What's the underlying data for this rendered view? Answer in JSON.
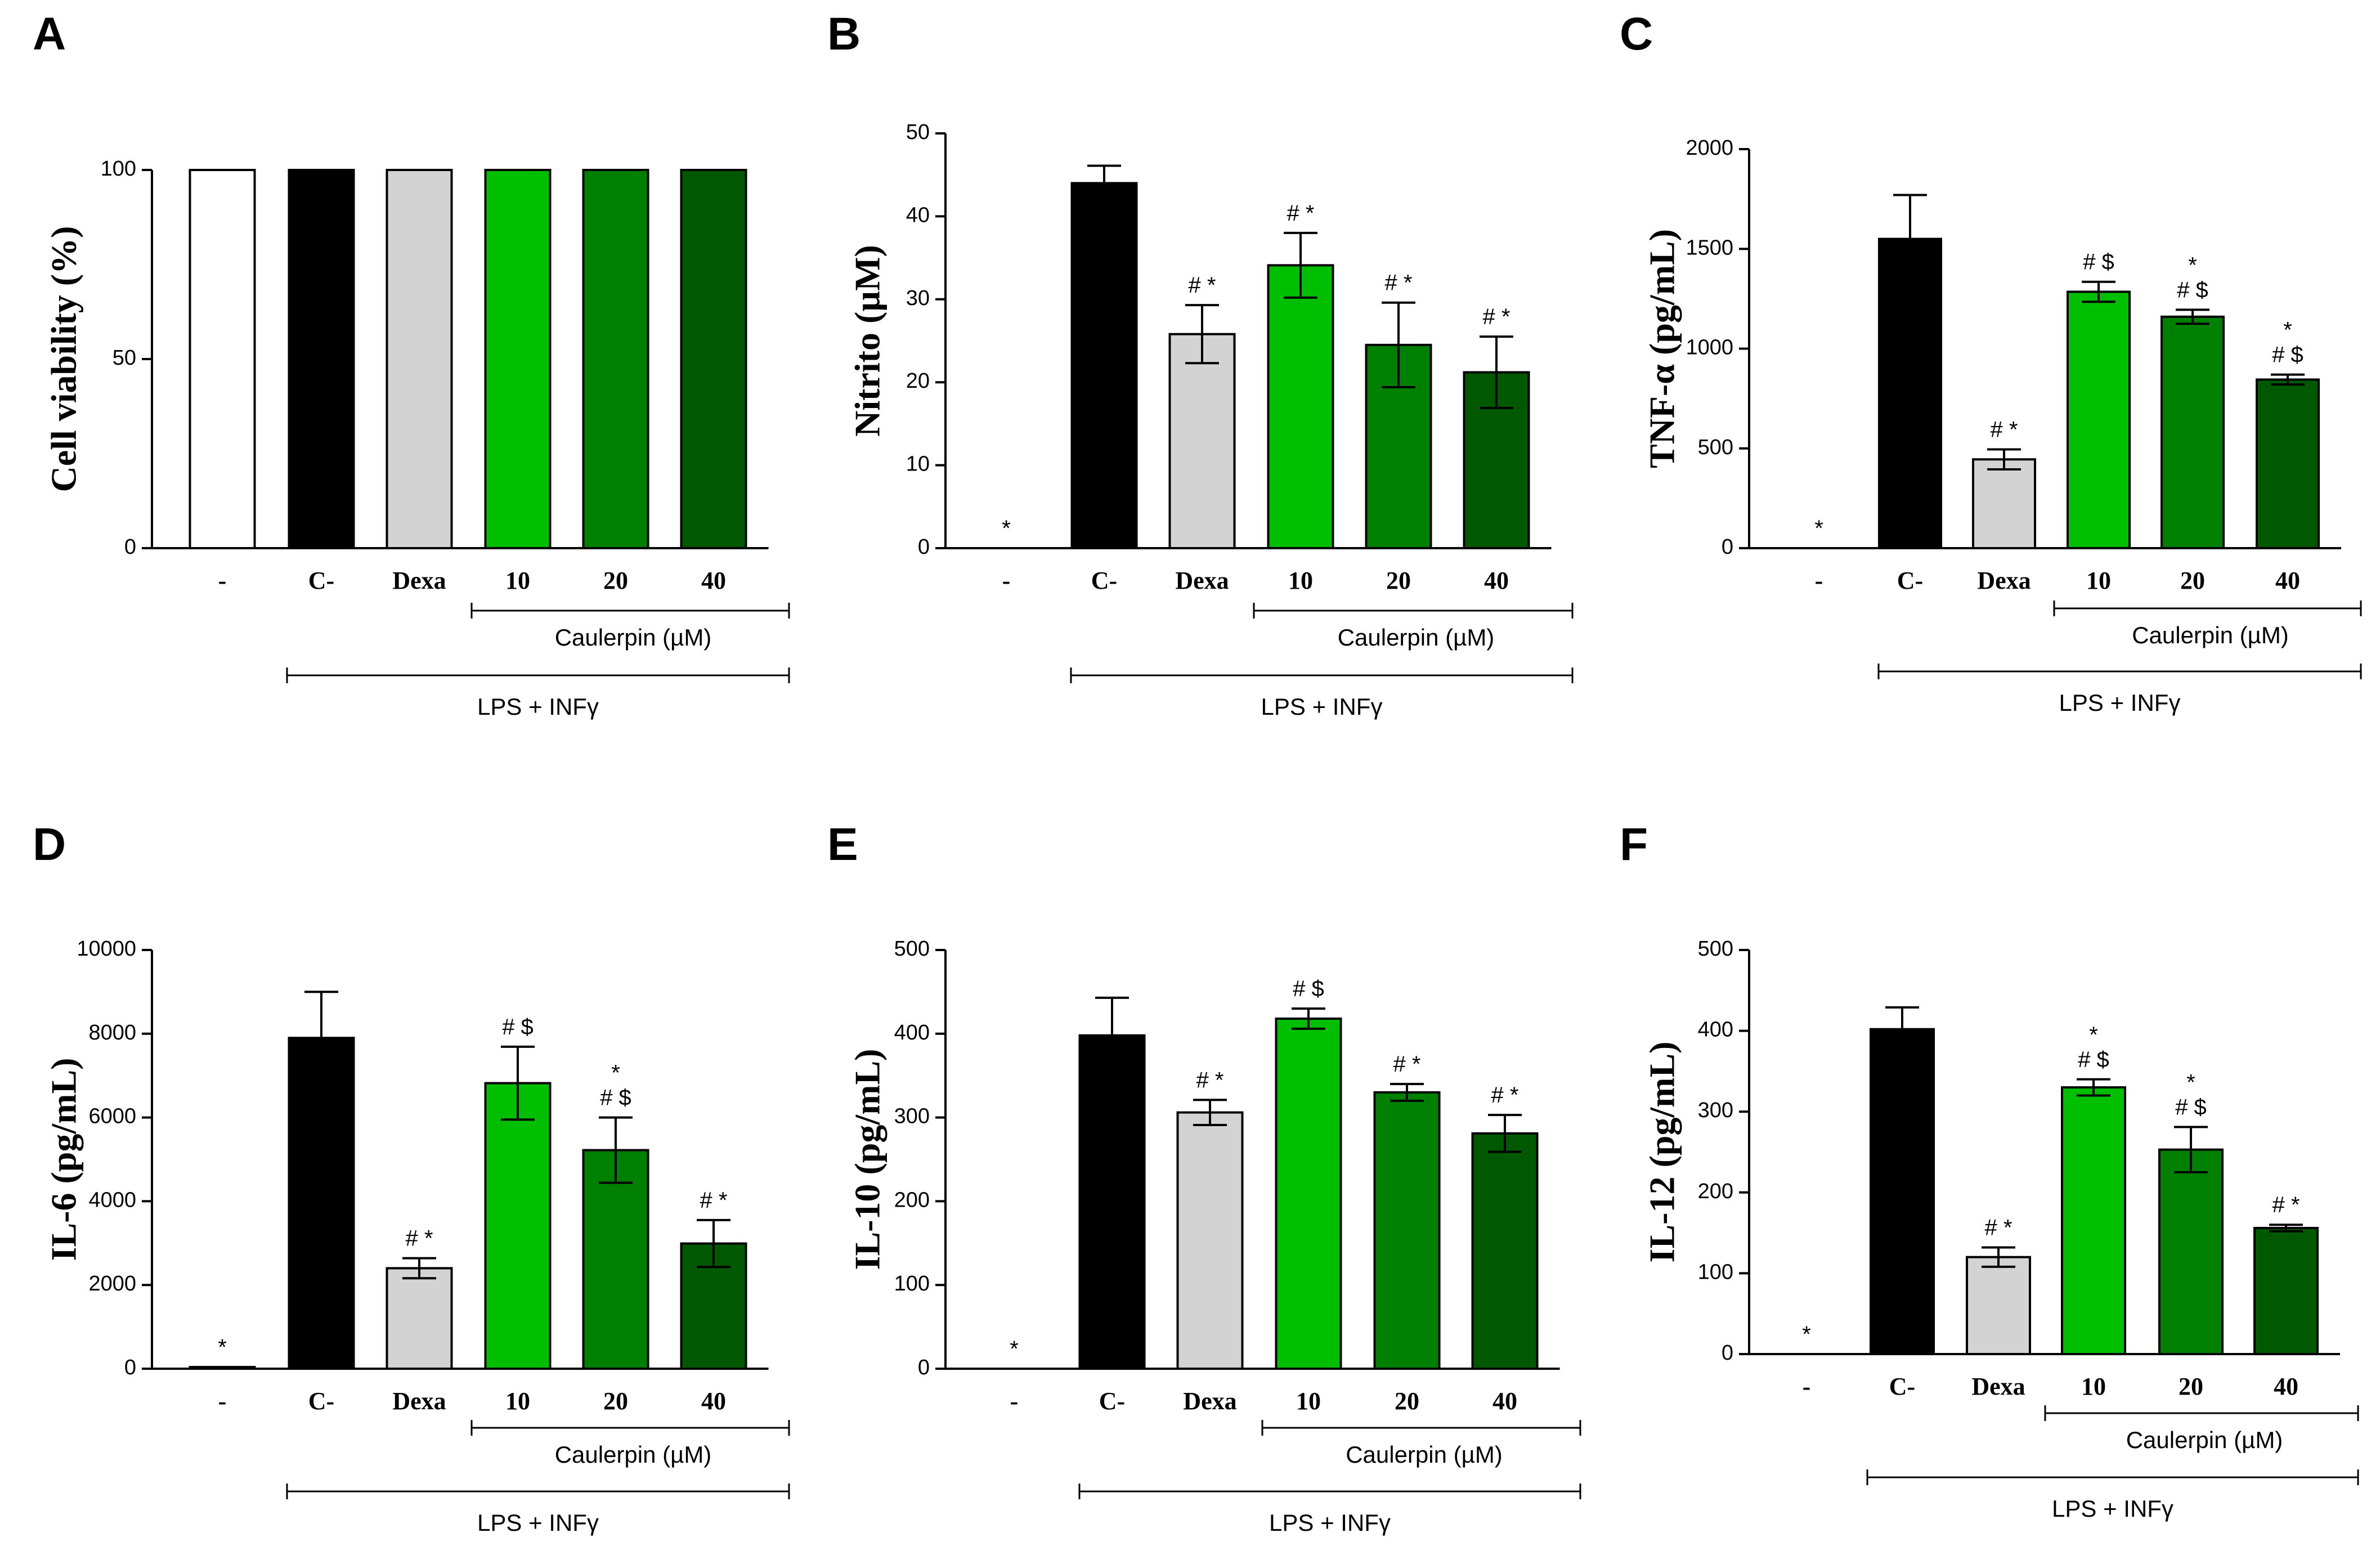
{
  "figure": {
    "categories": [
      "-",
      "C-",
      "Dexa",
      "10",
      "20",
      "40"
    ],
    "bar_colors": [
      "#ffffff",
      "#000000",
      "#d3d3d3",
      "#00bf00",
      "#008000",
      "#005900"
    ],
    "group_caulerpin_label": "Caulerpin (µM)",
    "group_stimulus_label": "LPS + INFγ"
  },
  "chart_data": [
    {
      "panel": "A",
      "type": "bar",
      "ylabel": "Cell viability (%)",
      "ylim": [
        0,
        100
      ],
      "yticks": [
        0,
        50,
        100
      ],
      "categories": [
        "-",
        "C-",
        "Dexa",
        "10",
        "20",
        "40"
      ],
      "values": [
        100,
        100,
        100,
        100,
        100,
        100
      ],
      "errors": [
        0,
        0,
        0,
        0,
        0,
        0
      ],
      "annotations": [
        "",
        "",
        "",
        "",
        "",
        ""
      ]
    },
    {
      "panel": "B",
      "type": "bar",
      "ylabel": "Nitrito (µM)",
      "ylim": [
        0,
        50
      ],
      "yticks": [
        0,
        10,
        20,
        30,
        40,
        50
      ],
      "categories": [
        "-",
        "C-",
        "Dexa",
        "10",
        "20",
        "40"
      ],
      "values": [
        0,
        44,
        25.8,
        34.1,
        24.5,
        21.2
      ],
      "errors": [
        0,
        2.1,
        3.5,
        3.9,
        5.1,
        4.3
      ],
      "annotations": [
        "*",
        "",
        "# *",
        "# *",
        "# *",
        "# *"
      ]
    },
    {
      "panel": "C",
      "type": "bar",
      "ylabel": "TNF-α (pg/mL)",
      "ylim": [
        0,
        2000
      ],
      "yticks": [
        0,
        500,
        1000,
        1500,
        2000
      ],
      "categories": [
        "-",
        "C-",
        "Dexa",
        "10",
        "20",
        "40"
      ],
      "values": [
        0,
        1550,
        445,
        1285,
        1160,
        845
      ],
      "errors": [
        0,
        220,
        50,
        50,
        35,
        25
      ],
      "annotations": [
        "*",
        "",
        "# *",
        "# $",
        "*\n# $",
        "*\n# $"
      ]
    },
    {
      "panel": "D",
      "type": "bar",
      "ylabel": "IL-6 (pg/mL)",
      "ylim": [
        0,
        10000
      ],
      "yticks": [
        0,
        2000,
        4000,
        6000,
        8000,
        10000
      ],
      "categories": [
        "-",
        "C-",
        "Dexa",
        "10",
        "20",
        "40"
      ],
      "values": [
        40,
        7900,
        2400,
        6820,
        5220,
        2990
      ],
      "errors": [
        0,
        1100,
        240,
        870,
        780,
        560
      ],
      "annotations": [
        "*",
        "",
        "# *",
        "# $",
        "*\n# $",
        "# *"
      ]
    },
    {
      "panel": "E",
      "type": "bar",
      "ylabel": "IL-10 (pg/mL)",
      "ylim": [
        0,
        500
      ],
      "yticks": [
        0,
        100,
        200,
        300,
        400,
        500
      ],
      "categories": [
        "-",
        "C-",
        "Dexa",
        "10",
        "20",
        "40"
      ],
      "values": [
        0,
        398,
        306,
        418,
        330,
        281
      ],
      "errors": [
        0,
        45,
        15,
        12,
        10,
        22
      ],
      "annotations": [
        "*",
        "",
        "# *",
        "# $",
        "# *",
        "# *"
      ]
    },
    {
      "panel": "F",
      "type": "bar",
      "ylabel": "IL-12 (pg/mL)",
      "ylim": [
        0,
        500
      ],
      "yticks": [
        0,
        100,
        200,
        300,
        400,
        500
      ],
      "categories": [
        "-",
        "C-",
        "Dexa",
        "10",
        "20",
        "40"
      ],
      "values": [
        0,
        402,
        120,
        330,
        253,
        156
      ],
      "errors": [
        0,
        27,
        12,
        10,
        28,
        4
      ],
      "annotations": [
        "*",
        "",
        "# *",
        "*\n# $",
        "*\n# $",
        "# *"
      ]
    }
  ]
}
